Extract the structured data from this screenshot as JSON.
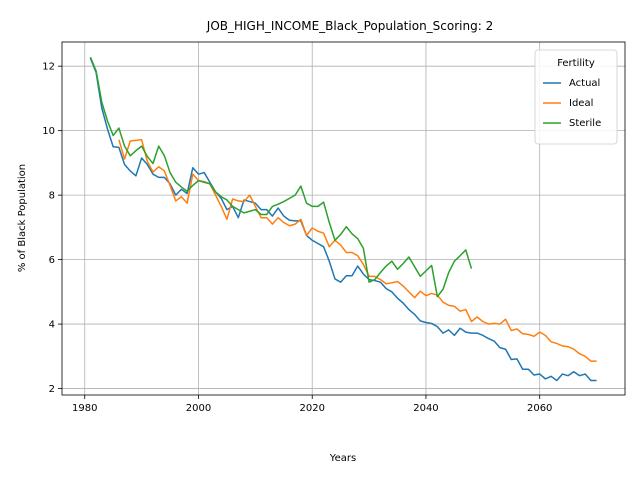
{
  "chart_data": {
    "type": "line",
    "title": "JOB_HIGH_INCOME_Black_Population_Scoring: 2",
    "xlabel": "Years",
    "ylabel": "% of Black Population",
    "xlim": [
      1976,
      2075
    ],
    "ylim": [
      1.8,
      12.75
    ],
    "xticks": [
      1980,
      2000,
      2020,
      2040,
      2060
    ],
    "yticks": [
      2,
      4,
      6,
      8,
      10,
      12
    ],
    "grid": true,
    "legend": {
      "title": "Fertility",
      "placement": "top-right"
    },
    "series": [
      {
        "name": "Actual",
        "color": "#1f77b4",
        "x": [
          1981,
          1982,
          1983,
          1984,
          1985,
          1986,
          1987,
          1988,
          1989,
          1990,
          1991,
          1992,
          1993,
          1994,
          1995,
          1996,
          1997,
          1998,
          1999,
          2000,
          2001,
          2002,
          2003,
          2004,
          2005,
          2006,
          2007,
          2008,
          2009,
          2010,
          2011,
          2012,
          2013,
          2014,
          2015,
          2016,
          2017,
          2018,
          2019,
          2020,
          2021,
          2022,
          2023,
          2024,
          2025,
          2026,
          2027,
          2028,
          2029,
          2030,
          2031,
          2032,
          2033,
          2034,
          2035,
          2036,
          2037,
          2038,
          2039,
          2040,
          2041,
          2042,
          2043,
          2044,
          2045,
          2046,
          2047,
          2048,
          2049,
          2050,
          2051,
          2052,
          2053,
          2054,
          2055,
          2056,
          2057,
          2058,
          2059,
          2060,
          2061,
          2062,
          2063,
          2064,
          2065,
          2066,
          2067,
          2068,
          2069,
          2070
        ],
        "y": [
          12.25,
          11.8,
          10.7,
          10.05,
          9.5,
          9.48,
          8.95,
          8.75,
          8.6,
          9.15,
          8.95,
          8.65,
          8.55,
          8.55,
          8.35,
          8.0,
          8.18,
          8.05,
          8.85,
          8.65,
          8.7,
          8.4,
          8.1,
          7.9,
          7.55,
          7.65,
          7.3,
          7.85,
          7.8,
          7.75,
          7.55,
          7.55,
          7.35,
          7.6,
          7.35,
          7.22,
          7.2,
          7.2,
          6.75,
          6.6,
          6.5,
          6.4,
          5.95,
          5.4,
          5.3,
          5.5,
          5.5,
          5.8,
          5.55,
          5.38,
          5.35,
          5.3,
          5.1,
          5.0,
          4.8,
          4.65,
          4.45,
          4.3,
          4.1,
          4.05,
          4.02,
          3.92,
          3.72,
          3.82,
          3.65,
          3.87,
          3.75,
          3.72,
          3.72,
          3.65,
          3.55,
          3.47,
          3.27,
          3.22,
          2.9,
          2.92,
          2.6,
          2.6,
          2.42,
          2.45,
          2.3,
          2.38,
          2.25,
          2.45,
          2.4,
          2.52,
          2.4,
          2.45,
          2.25,
          2.25
        ]
      },
      {
        "name": "Ideal",
        "color": "#ff7f0e",
        "x": [
          1986,
          1987,
          1988,
          1989,
          1990,
          1991,
          1992,
          1993,
          1994,
          1995,
          1996,
          1997,
          1998,
          1999,
          2000,
          2001,
          2002,
          2003,
          2004,
          2005,
          2006,
          2007,
          2008,
          2009,
          2010,
          2011,
          2012,
          2013,
          2014,
          2015,
          2016,
          2017,
          2018,
          2019,
          2020,
          2021,
          2022,
          2023,
          2024,
          2025,
          2026,
          2027,
          2028,
          2029,
          2030,
          2031,
          2032,
          2033,
          2034,
          2035,
          2036,
          2037,
          2038,
          2039,
          2040,
          2041,
          2042,
          2043,
          2044,
          2045,
          2046,
          2047,
          2048,
          2049,
          2050,
          2051,
          2052,
          2053,
          2054,
          2055,
          2056,
          2057,
          2058,
          2059,
          2060,
          2061,
          2062,
          2063,
          2064,
          2065,
          2066,
          2067,
          2068,
          2069,
          2070
        ],
        "y": [
          9.72,
          9.12,
          9.68,
          9.7,
          9.72,
          9.05,
          8.72,
          8.88,
          8.75,
          8.3,
          7.82,
          7.95,
          7.75,
          8.65,
          8.45,
          8.42,
          8.35,
          8.0,
          7.65,
          7.25,
          7.88,
          7.82,
          7.8,
          8.0,
          7.65,
          7.3,
          7.3,
          7.1,
          7.3,
          7.15,
          7.05,
          7.1,
          7.25,
          6.75,
          6.98,
          6.88,
          6.82,
          6.4,
          6.6,
          6.45,
          6.22,
          6.22,
          6.12,
          5.85,
          5.48,
          5.48,
          5.38,
          5.25,
          5.28,
          5.32,
          5.18,
          5.0,
          4.82,
          5.02,
          4.88,
          4.95,
          4.9,
          4.68,
          4.58,
          4.55,
          4.4,
          4.45,
          4.08,
          4.22,
          4.08,
          4.0,
          4.02,
          4.0,
          4.15,
          3.8,
          3.85,
          3.7,
          3.68,
          3.62,
          3.75,
          3.65,
          3.45,
          3.4,
          3.32,
          3.3,
          3.22,
          3.08,
          3.0,
          2.85,
          2.85
        ]
      },
      {
        "name": "Sterile",
        "color": "#2ca02c",
        "x": [
          1981,
          1982,
          1983,
          1984,
          1985,
          1986,
          1987,
          1988,
          1989,
          1990,
          1991,
          1992,
          1993,
          1994,
          1995,
          1996,
          1997,
          1998,
          1999,
          2000,
          2001,
          2002,
          2003,
          2004,
          2005,
          2006,
          2007,
          2008,
          2009,
          2010,
          2011,
          2012,
          2013,
          2014,
          2015,
          2016,
          2017,
          2018,
          2019,
          2020,
          2021,
          2022,
          2023,
          2024,
          2025,
          2026,
          2027,
          2028,
          2029,
          2030,
          2031,
          2032,
          2033,
          2034,
          2035,
          2036,
          2037,
          2038,
          2039,
          2040,
          2041,
          2042,
          2043,
          2044,
          2045,
          2046,
          2047,
          2048
        ],
        "y": [
          12.28,
          11.85,
          10.88,
          10.3,
          9.85,
          10.08,
          9.52,
          9.22,
          9.38,
          9.52,
          9.2,
          8.98,
          9.52,
          9.22,
          8.7,
          8.4,
          8.25,
          8.12,
          8.3,
          8.45,
          8.4,
          8.35,
          8.1,
          7.95,
          7.85,
          7.65,
          7.55,
          7.45,
          7.5,
          7.55,
          7.4,
          7.4,
          7.65,
          7.72,
          7.8,
          7.9,
          8.0,
          8.28,
          7.75,
          7.65,
          7.65,
          7.78,
          7.15,
          6.6,
          6.78,
          7.02,
          6.8,
          6.65,
          6.35,
          5.3,
          5.38,
          5.6,
          5.8,
          5.95,
          5.7,
          5.88,
          6.08,
          5.78,
          5.48,
          5.65,
          5.82,
          4.85,
          5.08,
          5.6,
          5.95,
          6.12,
          6.3,
          5.72
        ]
      }
    ]
  }
}
